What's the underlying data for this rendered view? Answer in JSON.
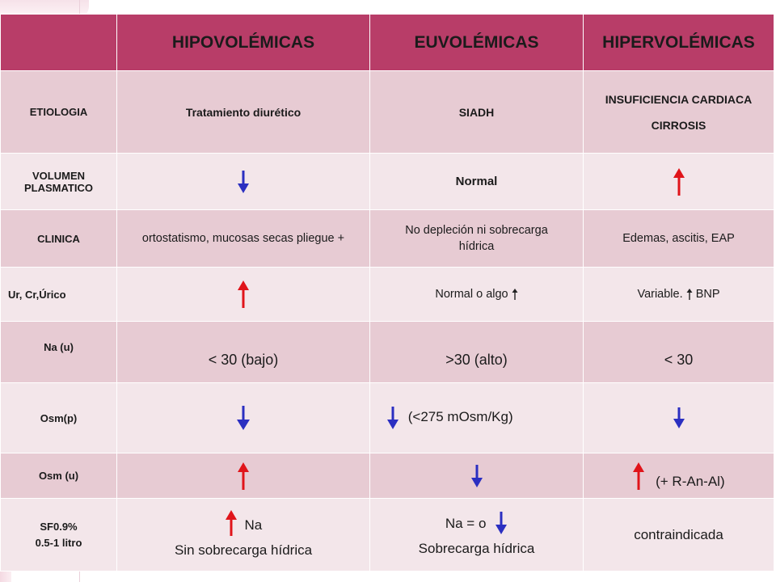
{
  "columns": [
    "",
    "HIPOVOLÉMICAS",
    "EUVOLÉMICAS",
    "HIPERVOLÉMICAS"
  ],
  "colors": {
    "header_bg": "#b83d68",
    "row_dark": "#e7cbd3",
    "row_light": "#f3e6ea",
    "arrow_up": "#e0141a",
    "arrow_down": "#2b2fc1"
  },
  "rows": {
    "etiologia": {
      "label": "ETIOLOGIA",
      "hipo": "Tratamiento diurético",
      "eu": "SIADH",
      "hiper_line1": "INSUFICIENCIA CARDIACA",
      "hiper_line2": "CIRROSIS"
    },
    "volumen": {
      "label_line1": "VOLUMEN",
      "label_line2": "PLASMATICO",
      "hipo_icon": "arrow-down",
      "eu": "Normal",
      "hiper_icon": "arrow-up"
    },
    "clinica": {
      "label": "CLINICA",
      "hipo": "ortostatismo, mucosas secas pliegue +",
      "eu": "No depleción ni sobrecarga hídrica",
      "hiper": "Edemas, ascitis, EAP"
    },
    "ur": {
      "label": "Ur, Cr,Úrico",
      "hipo_icon": "arrow-up",
      "eu": "Normal o algo",
      "eu_icon": "small-arrow-up",
      "hiper": "Variable.",
      "hiper_icon": "small-arrow-up",
      "hiper_suffix": "BNP"
    },
    "na_u": {
      "label": "Na (u)",
      "hipo": "< 30 (bajo)",
      "eu": ">30 (alto)",
      "hiper": "< 30"
    },
    "osm_p": {
      "label": "Osm(p)",
      "hipo_icon": "arrow-down",
      "eu_icon": "arrow-down",
      "eu": "(<275 mOsm/Kg)",
      "hiper_icon": "arrow-down"
    },
    "osm_u": {
      "label": "Osm (u)",
      "hipo_icon": "arrow-up",
      "eu_icon": "arrow-down",
      "hiper_icon": "arrow-up",
      "hiper": "(+ R-An-Al)"
    },
    "sf": {
      "label_line1": "SF0.9%",
      "label_line2": "0.5-1 litro",
      "hipo_icon": "arrow-up",
      "hipo_top": "Na",
      "hipo_bottom": "Sin sobrecarga hídrica",
      "eu_top": "Na = o",
      "eu_icon": "arrow-down",
      "eu_bottom": "Sobrecarga hídrica",
      "hiper": "contraindicada"
    }
  }
}
